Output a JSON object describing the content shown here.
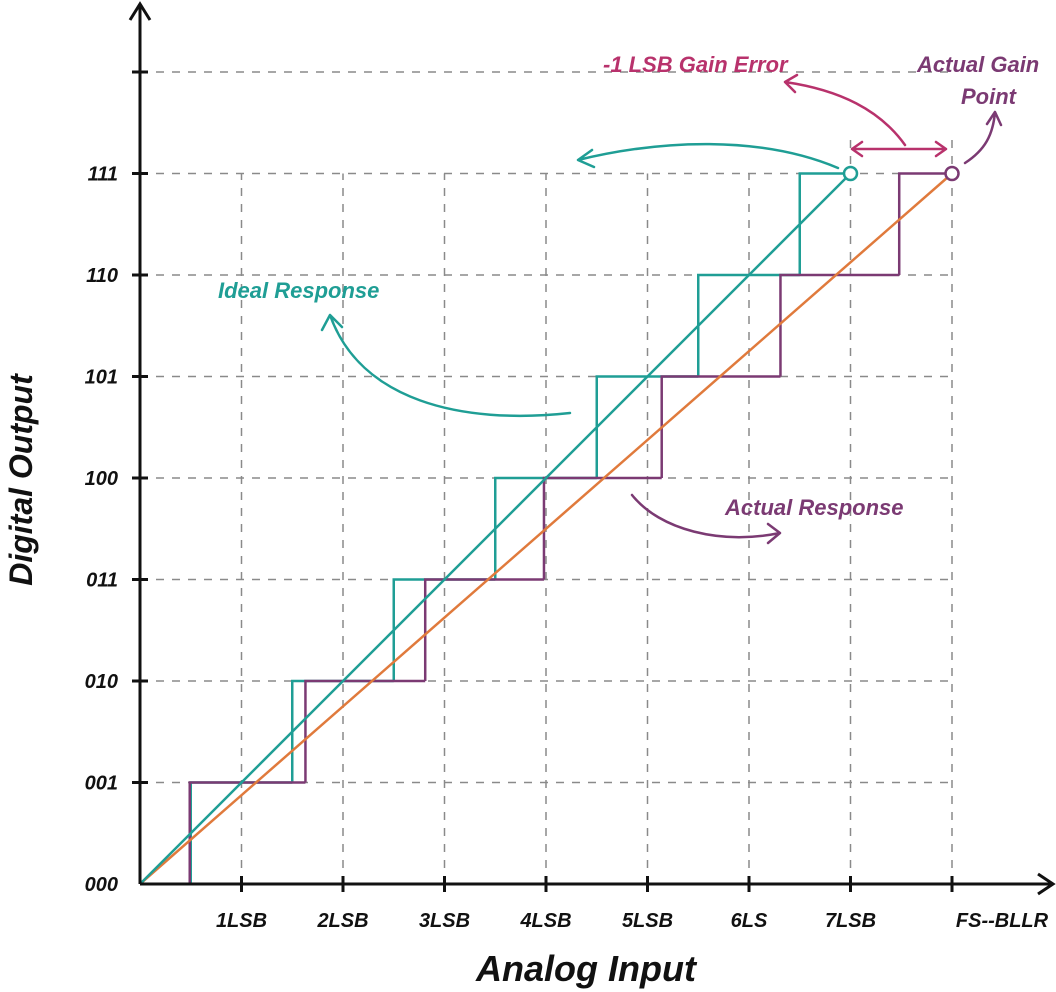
{
  "axes": {
    "x_label": "Analog Input",
    "y_label": "Digital Output",
    "x_ticks": [
      "1LSB",
      "2LSB",
      "3LSB",
      "4LSB",
      "5LSB",
      "6LS",
      "7LSB",
      "FS--BLLR"
    ],
    "y_ticks": [
      "000",
      "001",
      "010",
      "011",
      "100",
      "101",
      "110",
      "111"
    ]
  },
  "series": {
    "ideal_transitions": [
      0.5,
      1.5,
      2.5,
      3.5,
      4.5,
      5.5,
      6.5
    ],
    "ideal_end": 7,
    "actual_transitions": [
      0.49,
      1.63,
      2.81,
      3.98,
      5.14,
      6.31,
      7.48
    ],
    "actual_end": 8
  },
  "annotations": {
    "ideal": "Ideal Response",
    "actual": "Actual Response",
    "gain_error": "-1 LSB Gain Error",
    "gain_point_1": "Actual Gain",
    "gain_point_2": "Point"
  },
  "colors": {
    "ideal": "#1f9e95",
    "actual": "#7b3a73",
    "actual_line": "#e07a3c",
    "gain_error": "#b8326c",
    "grid": "#8a8a8a",
    "axis": "#111111"
  }
}
